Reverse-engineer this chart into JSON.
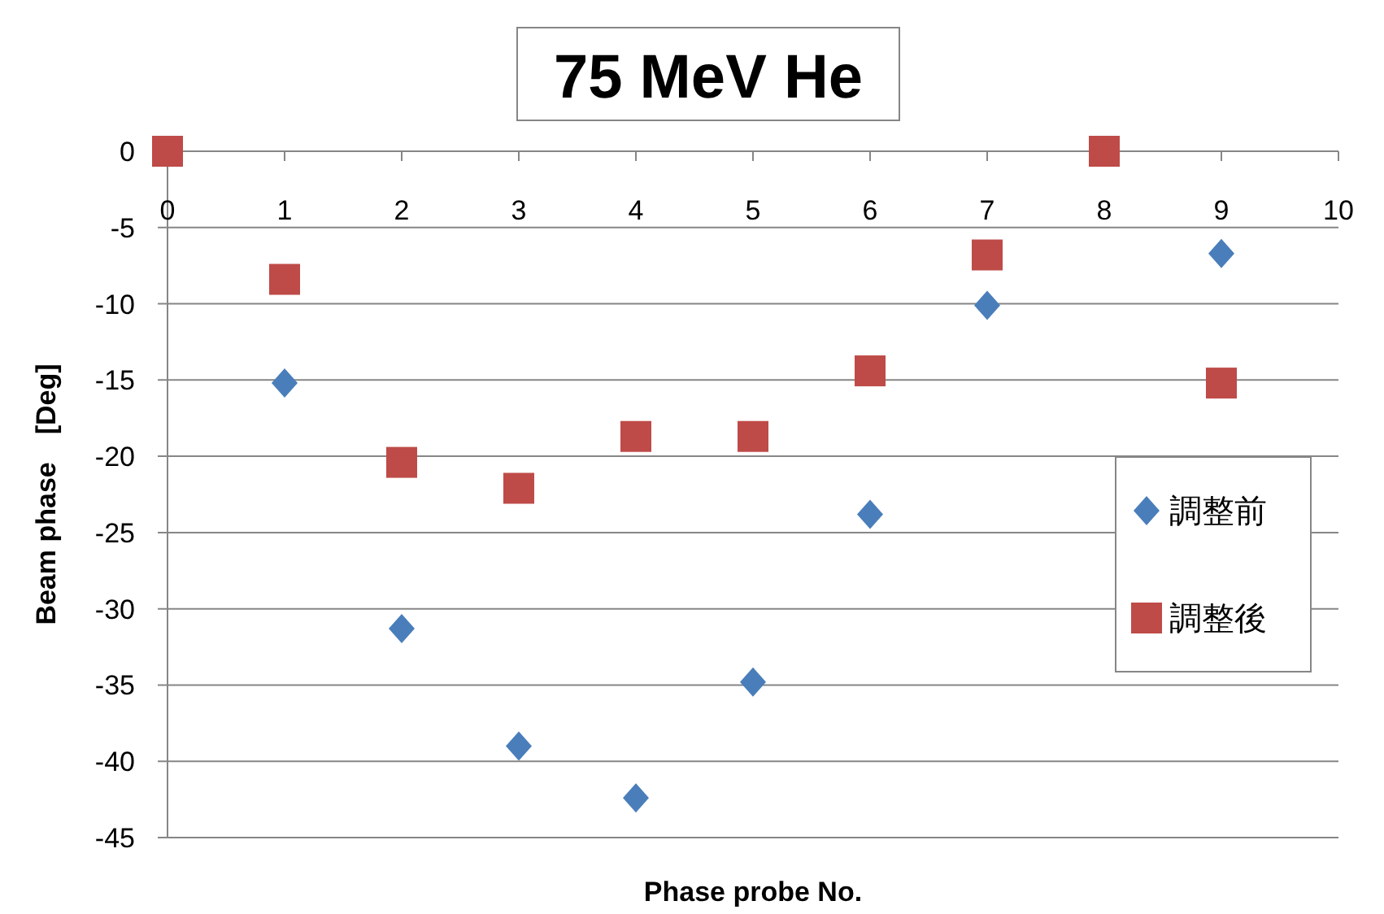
{
  "chart_data": {
    "type": "scatter",
    "title": "75 MeV He",
    "xlabel": "Phase probe No.",
    "ylabel": "Beam phase　[Deg]",
    "xlim": [
      0,
      10
    ],
    "xticks": [
      0,
      1,
      2,
      3,
      4,
      5,
      6,
      7,
      8,
      9,
      10
    ],
    "ylim": [
      -45,
      0
    ],
    "yticks": [
      0,
      -5,
      -10,
      -15,
      -20,
      -25,
      -30,
      -35,
      -40,
      -45
    ],
    "grid": "y",
    "legend": "right",
    "x": [
      0,
      1,
      2,
      3,
      4,
      5,
      6,
      7,
      8,
      9
    ],
    "series": [
      {
        "name": "調整前",
        "color": "#4a7ebb",
        "marker": "diamond",
        "values": [
          null,
          -15.2,
          -31.3,
          -39.0,
          -42.4,
          -34.8,
          -23.8,
          -10.1,
          null,
          -6.7
        ]
      },
      {
        "name": "調整後",
        "color": "#be4b48",
        "marker": "square",
        "values": [
          0,
          -8.4,
          -20.4,
          -22.1,
          -18.7,
          -18.7,
          -14.4,
          -6.8,
          0,
          -15.2
        ]
      }
    ]
  }
}
